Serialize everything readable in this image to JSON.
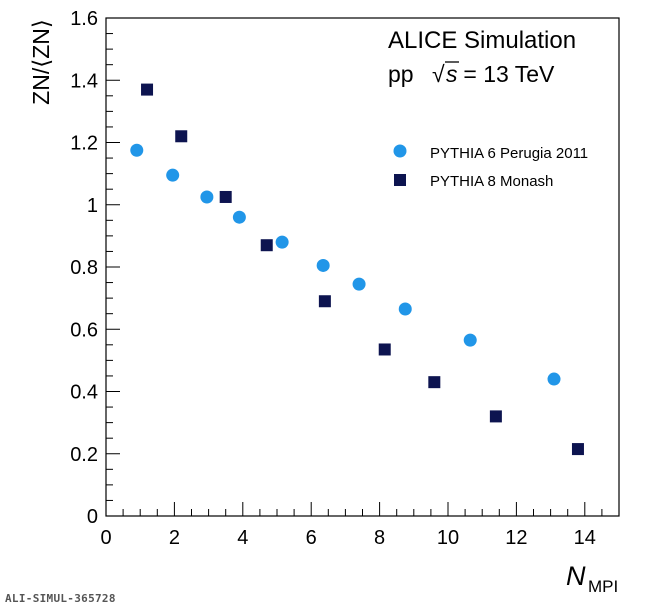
{
  "chart_data": {
    "type": "scatter",
    "title": "",
    "xlabel": "N",
    "xlabel_sub": "MPI",
    "ylabel": "ZN/⟨ZN⟩",
    "xlim": [
      0,
      15
    ],
    "ylim": [
      0,
      1.6
    ],
    "x_ticks": [
      "0",
      "2",
      "4",
      "6",
      "8",
      "10",
      "12",
      "14"
    ],
    "y_ticks": [
      "0",
      "0.2",
      "0.4",
      "0.6",
      "0.8",
      "1",
      "1.2",
      "1.4",
      "1.6"
    ],
    "grid": false,
    "legend_position": "upper-right",
    "annotations": {
      "experiment": "ALICE Simulation",
      "system": "pp",
      "sqrt_symbol": "√",
      "energy_var": "s",
      "energy_value": " = 13 TeV"
    },
    "series": [
      {
        "name": "PYTHIA 6 Perugia 2011",
        "marker": "circle",
        "color": "#2196e8",
        "x": [
          0.9,
          1.95,
          2.95,
          3.9,
          5.15,
          6.35,
          7.4,
          8.75,
          10.65,
          13.1
        ],
        "y": [
          1.175,
          1.095,
          1.025,
          0.96,
          0.88,
          0.805,
          0.745,
          0.665,
          0.565,
          0.44
        ]
      },
      {
        "name": "PYTHIA 8 Monash",
        "marker": "square",
        "color": "#0d1450",
        "x": [
          1.2,
          2.2,
          3.5,
          4.7,
          6.4,
          8.15,
          9.6,
          11.4,
          13.8
        ],
        "y": [
          1.37,
          1.22,
          1.025,
          0.87,
          0.69,
          0.535,
          0.43,
          0.32,
          0.215
        ]
      }
    ]
  },
  "footer": {
    "watermark": "ALI-SIMUL-365728"
  }
}
